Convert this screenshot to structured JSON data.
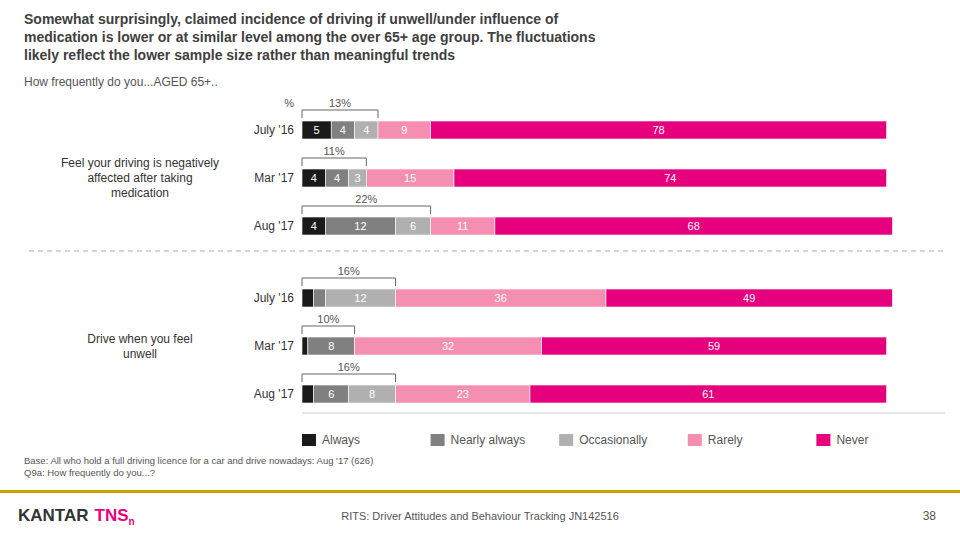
{
  "chart_data": {
    "type": "bar",
    "orientation": "horizontal",
    "stacked": true,
    "data_labels": true,
    "tick_labels": false,
    "legend": "bottom",
    "title": "Somewhat surprisingly, claimed incidence of driving if unwell/under influence of\nmedication is lower or at similar level among the over 65+ age group.  The fluctuations\nlikely reflect the lower sample size rather than meaningful trends",
    "subtitle": "How frequently do you...AGED 65+..",
    "unit_label": "%",
    "categories": [
      "July '16",
      "Mar '17",
      "Aug '17",
      "July '16",
      "Mar '17",
      "Aug '17"
    ],
    "groups": [
      {
        "label": "Feel your driving is negatively\naffected after taking\nmedication",
        "count": 3
      },
      {
        "label": "Drive when you feel\nunwell",
        "count": 3
      }
    ],
    "series": [
      {
        "name": "Always",
        "color": "#1a1a1a",
        "values": [
          5,
          4,
          4,
          2,
          1,
          2
        ]
      },
      {
        "name": "Nearly always",
        "color": "#808080",
        "values": [
          4,
          4,
          12,
          2,
          8,
          6
        ]
      },
      {
        "name": "Occasionally",
        "color": "#b0b0b0",
        "values": [
          4,
          3,
          6,
          12,
          0,
          8
        ]
      },
      {
        "name": "Rarely",
        "color": "#f48fb1",
        "values": [
          9,
          15,
          11,
          36,
          32,
          23
        ]
      },
      {
        "name": "Never",
        "color": "#e6007e",
        "values": [
          78,
          74,
          68,
          49,
          59,
          61
        ]
      }
    ],
    "brackets": {
      "labels": [
        "13%",
        "11%",
        "22%",
        "16%",
        "10%",
        "16%"
      ],
      "cols": [
        3,
        3,
        3,
        3,
        2,
        3
      ]
    },
    "xlim": [
      0,
      110
    ],
    "note": "Base: All who hold a full driving licence for a car and drive nowadays: Aug '17 (626)\nQ9a: How frequently do you...?",
    "footer": {
      "logo": [
        "KANTAR",
        "TNS",
        "n"
      ],
      "center": "RITS: Driver Attitudes and Behaviour Tracking   JN142516",
      "page": "38"
    }
  }
}
